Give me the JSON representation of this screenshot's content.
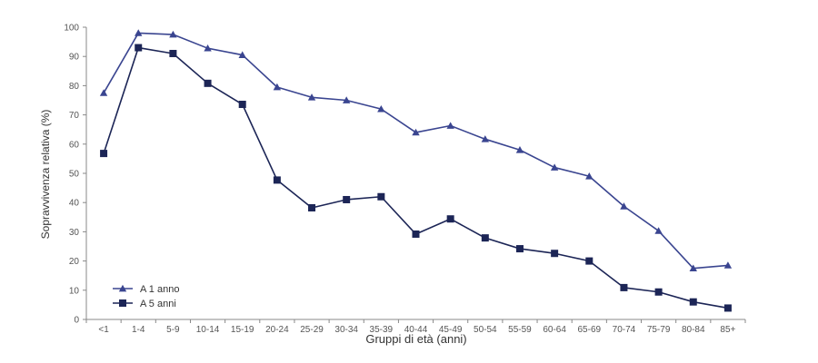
{
  "chart_data": {
    "type": "line",
    "xlabel": "Gruppi di età (anni)",
    "ylabel": "Sopravvivenza relativa (%)",
    "ylim": [
      0,
      100
    ],
    "yticks": [
      0,
      10,
      20,
      30,
      40,
      50,
      60,
      70,
      80,
      90,
      100
    ],
    "grid": false,
    "legend_position": "bottom-left",
    "categories": [
      "<1",
      "1-4",
      "5-9",
      "10-14",
      "15-19",
      "20-24",
      "25-29",
      "30-34",
      "35-39",
      "40-44",
      "45-49",
      "50-54",
      "55-59",
      "60-64",
      "65-69",
      "70-74",
      "75-79",
      "80-84",
      "85+"
    ],
    "series": [
      {
        "name": "A 1 anno",
        "marker": "triangle",
        "color": "#3a4590",
        "values": [
          77.5,
          98,
          97.5,
          92.8,
          90.5,
          79.5,
          76,
          75,
          72,
          64,
          66.3,
          61.7,
          58,
          52,
          49,
          38.7,
          30.3,
          17.5,
          18.5
        ]
      },
      {
        "name": "A 5 anni",
        "marker": "square",
        "color": "#1c2556",
        "values": [
          56.8,
          93,
          91,
          80.8,
          73.6,
          47.7,
          38.2,
          41,
          42,
          29.2,
          34.4,
          27.9,
          24.2,
          22.6,
          20,
          10.9,
          9.4,
          6,
          3.9
        ]
      }
    ]
  }
}
